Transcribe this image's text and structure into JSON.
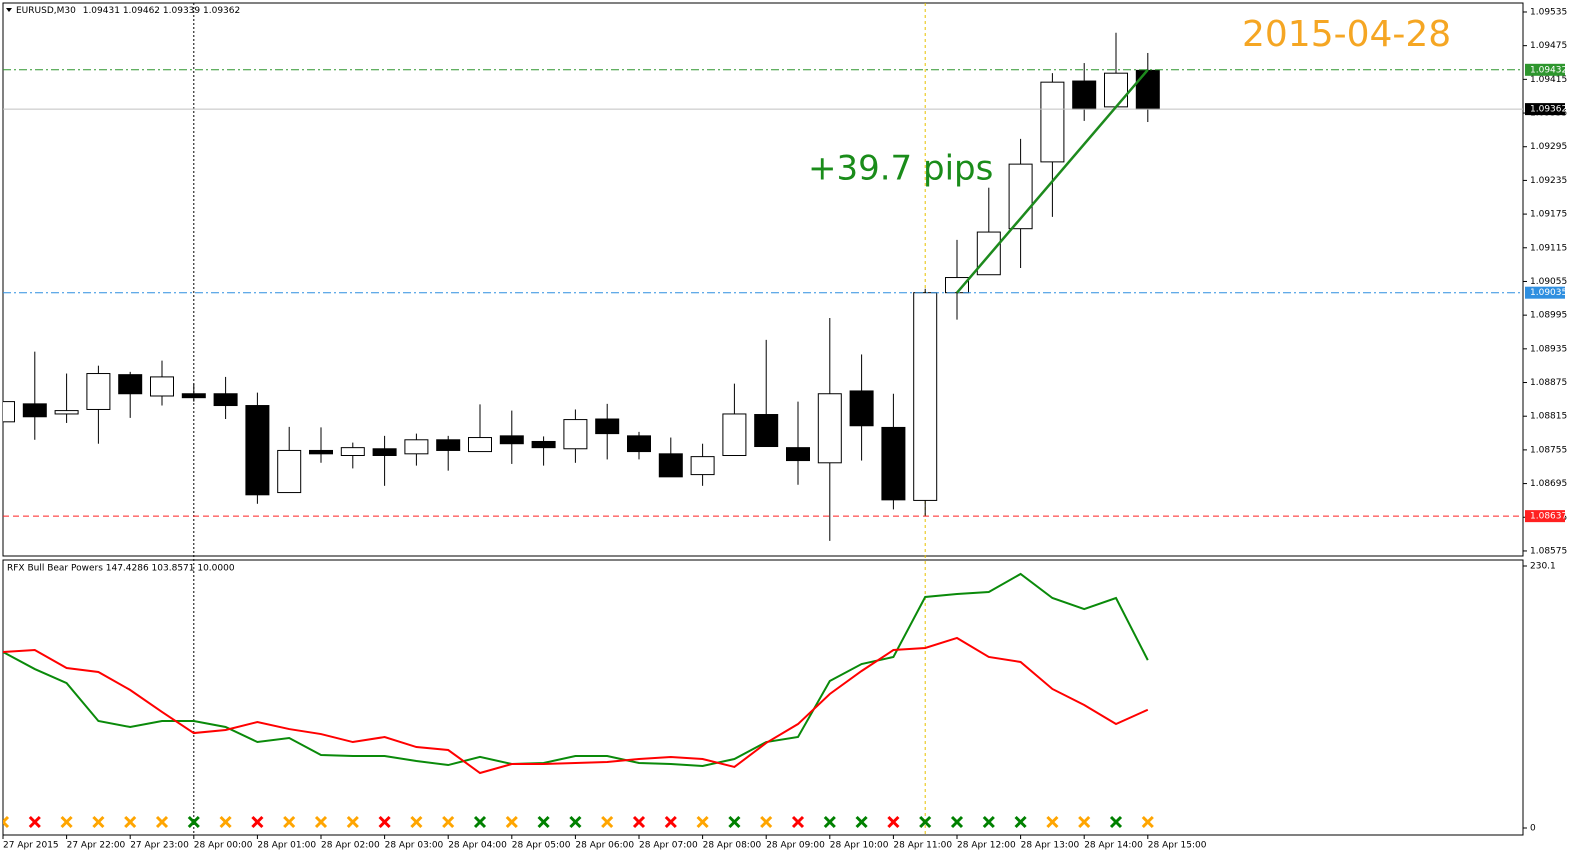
{
  "chart_data": [
    {
      "type": "candlestick",
      "title": "EURUSD,M30",
      "categories": [
        "27 Apr 2015",
        null,
        "27 Apr 22:00",
        null,
        "27 Apr 23:00",
        null,
        "28 Apr 00:00",
        null,
        "28 Apr 01:00",
        null,
        "28 Apr 02:00",
        null,
        "28 Apr 03:00",
        null,
        "28 Apr 04:00",
        null,
        "28 Apr 05:00",
        null,
        "28 Apr 06:00",
        null,
        "28 Apr 07:00",
        null,
        "28 Apr 08:00",
        null,
        "28 Apr 09:00",
        null,
        "28 Apr 10:00",
        null,
        "28 Apr 11:00",
        null,
        "28 Apr 12:00",
        null,
        "28 Apr 13:00",
        null,
        "28 Apr 14:00",
        null,
        "28 Apr 15:00"
      ],
      "open": [
        1.08805,
        1.08837,
        1.08819,
        1.08827,
        1.08889,
        1.08851,
        1.08855,
        1.08855,
        1.08834,
        1.08679,
        1.08754,
        1.08745,
        1.08757,
        1.08748,
        1.08773,
        1.08752,
        1.0878,
        1.0877,
        1.08757,
        1.0881,
        1.0878,
        1.08748,
        1.08711,
        1.08745,
        1.08818,
        1.08759,
        1.08732,
        1.0886,
        1.08795,
        1.08665,
        1.09035,
        1.09067,
        1.09149,
        1.09268,
        1.09412,
        1.09366,
        1.09431
      ],
      "high": [
        1.08866,
        1.0893,
        1.08891,
        1.08905,
        1.08894,
        1.08914,
        1.08873,
        1.08885,
        1.08857,
        1.08796,
        1.08795,
        1.08768,
        1.0878,
        1.08784,
        1.0878,
        1.08836,
        1.08825,
        1.08779,
        1.08827,
        1.08837,
        1.08787,
        1.08777,
        1.08766,
        1.08873,
        1.08951,
        1.08841,
        1.0899,
        1.08925,
        1.08855,
        1.09042,
        1.09129,
        1.09222,
        1.09309,
        1.09426,
        1.09444,
        1.09498,
        1.09462
      ],
      "low": [
        1.08773,
        1.08773,
        1.08803,
        1.08766,
        1.08812,
        1.08834,
        1.08841,
        1.0881,
        1.08659,
        1.08679,
        1.08732,
        1.08722,
        1.08691,
        1.08727,
        1.08718,
        1.08752,
        1.0873,
        1.08727,
        1.08732,
        1.08738,
        1.08738,
        1.08707,
        1.08691,
        1.08745,
        1.08761,
        1.08693,
        1.08593,
        1.08736,
        1.08649,
        1.08637,
        1.08987,
        1.09067,
        1.09079,
        1.0917,
        1.09341,
        1.09366,
        1.09339
      ],
      "close": [
        1.08841,
        1.08814,
        1.08825,
        1.08891,
        1.08855,
        1.08885,
        1.08848,
        1.08834,
        1.08675,
        1.08754,
        1.08748,
        1.08759,
        1.08745,
        1.08773,
        1.08754,
        1.08777,
        1.08766,
        1.08759,
        1.08809,
        1.08784,
        1.08752,
        1.08707,
        1.08743,
        1.08819,
        1.08761,
        1.08736,
        1.08855,
        1.08798,
        1.08666,
        1.09035,
        1.09062,
        1.09143,
        1.09264,
        1.0941,
        1.09362,
        1.09426,
        1.09362
      ],
      "up_color": "#ffffff",
      "down_color": "#000000",
      "ylim": [
        1.08566,
        1.09551
      ],
      "yticks": [
        1.09535,
        1.09475,
        1.09415,
        1.09355,
        1.09295,
        1.09235,
        1.09175,
        1.09115,
        1.09055,
        1.08995,
        1.08935,
        1.08875,
        1.08815,
        1.08755,
        1.08695,
        1.08635,
        1.08575
      ],
      "grid": false,
      "levels": [
        {
          "value": 1.09432,
          "color": "#2e962e",
          "style": "dashdot"
        },
        {
          "value": 1.09362,
          "color": "#000000",
          "style": "solid"
        },
        {
          "value": 1.09035,
          "color": "#2f8fe0",
          "style": "dashdot"
        },
        {
          "value": 1.08637,
          "color": "#ff2020",
          "style": "dashed"
        }
      ],
      "trend_line": {
        "from": 1.09035,
        "to": 1.09432,
        "color": "#1d8a1d"
      },
      "pips_label": "+39.7 pips",
      "date_label": "2015-04-28"
    },
    {
      "type": "line",
      "title": "RFX Bull Bear Powers 147.4286 103.8571 10.0000",
      "series": [
        {
          "color": "#0a8a0a",
          "values": [
            154.6,
            139.6,
            127.3,
            94.0,
            88.7,
            94.0,
            94.0,
            88.7,
            75.5,
            79.0,
            64.1,
            63.2,
            63.2,
            58.8,
            55.3,
            62.4,
            56.2,
            57.1,
            63.2,
            63.2,
            57.1,
            56.2,
            54.5,
            60.6,
            75.5,
            79.9,
            129.1,
            144.0,
            150.2,
            202.9,
            205.5,
            207.3,
            223.1,
            202.0,
            192.3,
            202.0,
            147.4286
          ]
        },
        {
          "color": "#ff0000",
          "values": [
            154.6,
            156.3,
            140.5,
            137.0,
            121.2,
            101.9,
            83.4,
            86.1,
            93.1,
            86.9,
            82.5,
            75.5,
            79.9,
            71.1,
            68.5,
            48.3,
            56.2,
            56.2,
            57.1,
            58.0,
            60.6,
            62.4,
            60.6,
            53.6,
            74.7,
            91.3,
            117.7,
            137.9,
            156.3,
            158.1,
            166.9,
            150.2,
            145.8,
            122.1,
            108.0,
            91.3,
            103.8571
          ]
        }
      ],
      "ylim": [
        0,
        230.1
      ],
      "yticks": [
        0,
        230.1
      ],
      "signal_colors": [
        "#ffa500",
        "#ff0000",
        "#ffa500",
        "#ffa500",
        "#ffa500",
        "#ffa500",
        "#008000",
        "#ffa500",
        "#ff0000",
        "#ffa500",
        "#ffa500",
        "#ffa500",
        "#ff0000",
        "#ffa500",
        "#ffa500",
        "#008000",
        "#ffa500",
        "#008000",
        "#008000",
        "#ffa500",
        "#ff0000",
        "#ff0000",
        "#ffa500",
        "#008000",
        "#ffa500",
        "#ff0000",
        "#008000",
        "#008000",
        "#ff0000",
        "#008000",
        "#008000",
        "#008000",
        "#008000",
        "#ffa500",
        "#ffa500",
        "#008000",
        "#ffa500"
      ]
    }
  ]
}
